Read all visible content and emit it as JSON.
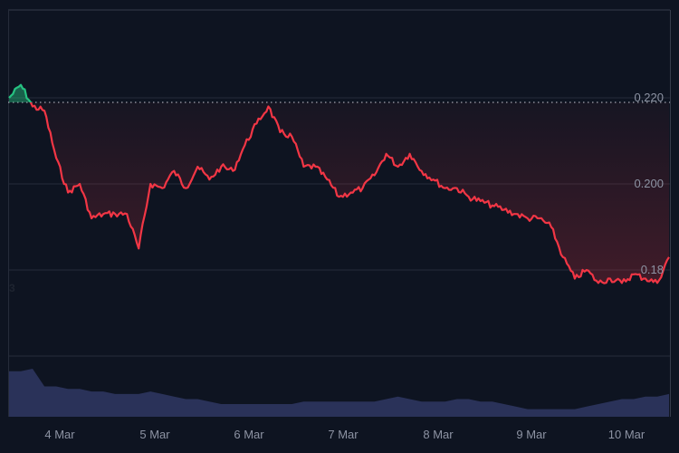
{
  "chart_data": {
    "type": "area",
    "title": "",
    "xlabel": "",
    "ylabel": "",
    "x_ticks": [
      "4 Mar",
      "5 Mar",
      "6 Mar",
      "7 Mar",
      "8 Mar",
      "9 Mar",
      "10 Mar"
    ],
    "y_ticks": [
      "0.220",
      "0.200",
      "0.18"
    ],
    "ylim": [
      0.165,
      0.24
    ],
    "grid": true,
    "baseline": 0.219,
    "baseline_style": "dotted",
    "colors": {
      "above_baseline": "#26c281",
      "below_baseline": "#f23645",
      "volume": "#2e3660",
      "background": "#0e1421",
      "grid": "#262c3a"
    },
    "series": [
      {
        "name": "price",
        "x": [
          "3 Mar 18:00",
          "3 Mar 20:00",
          "3 Mar 22:00",
          "4 Mar 00:00",
          "4 Mar 03:00",
          "4 Mar 06:00",
          "4 Mar 09:00",
          "4 Mar 12:00",
          "4 Mar 15:00",
          "4 Mar 18:00",
          "4 Mar 21:00",
          "5 Mar 00:00",
          "5 Mar 03:00",
          "5 Mar 06:00",
          "5 Mar 09:00",
          "5 Mar 12:00",
          "5 Mar 15:00",
          "5 Mar 18:00",
          "5 Mar 21:00",
          "6 Mar 00:00",
          "6 Mar 03:00",
          "6 Mar 06:00",
          "6 Mar 09:00",
          "6 Mar 12:00",
          "6 Mar 15:00",
          "6 Mar 18:00",
          "6 Mar 21:00",
          "7 Mar 00:00",
          "7 Mar 03:00",
          "7 Mar 06:00",
          "7 Mar 09:00",
          "7 Mar 12:00",
          "7 Mar 15:00",
          "7 Mar 18:00",
          "7 Mar 21:00",
          "8 Mar 00:00",
          "8 Mar 03:00",
          "8 Mar 06:00",
          "8 Mar 09:00",
          "8 Mar 12:00",
          "8 Mar 15:00",
          "8 Mar 18:00",
          "8 Mar 21:00",
          "9 Mar 00:00",
          "9 Mar 03:00",
          "9 Mar 06:00",
          "9 Mar 09:00",
          "9 Mar 12:00",
          "9 Mar 15:00",
          "9 Mar 18:00",
          "9 Mar 21:00",
          "10 Mar 00:00",
          "10 Mar 03:00",
          "10 Mar 06:00",
          "10 Mar 09:00",
          "10 Mar 12:00",
          "10 Mar 15:00"
        ],
        "values": [
          0.22,
          0.223,
          0.218,
          0.217,
          0.206,
          0.198,
          0.2,
          0.192,
          0.193,
          0.193,
          0.193,
          0.185,
          0.2,
          0.199,
          0.203,
          0.199,
          0.204,
          0.201,
          0.204,
          0.203,
          0.209,
          0.214,
          0.218,
          0.212,
          0.211,
          0.204,
          0.204,
          0.201,
          0.197,
          0.198,
          0.199,
          0.202,
          0.207,
          0.204,
          0.207,
          0.203,
          0.201,
          0.199,
          0.199,
          0.197,
          0.196,
          0.195,
          0.194,
          0.193,
          0.192,
          0.192,
          0.19,
          0.183,
          0.178,
          0.18,
          0.177,
          0.178,
          0.177,
          0.179,
          0.178,
          0.177,
          0.183
        ]
      },
      {
        "name": "volume",
        "values": [
          9,
          9,
          9.5,
          6,
          6,
          5.5,
          5.5,
          5,
          5,
          4.5,
          4.5,
          4.5,
          5,
          4.5,
          4,
          3.5,
          3.5,
          3,
          2.5,
          2.5,
          2.5,
          2.5,
          2.5,
          2.5,
          2.5,
          3,
          3,
          3,
          3,
          3,
          3,
          3,
          3.5,
          4,
          3.5,
          3,
          3,
          3,
          3.5,
          3.5,
          3,
          3,
          2.5,
          2,
          1.5,
          1.5,
          1.5,
          1.5,
          1.5,
          2,
          2.5,
          3,
          3.5,
          3.5,
          4,
          4,
          4.5
        ]
      }
    ]
  },
  "y_axis": {
    "labels": [
      "0.220",
      "0.200",
      "0.18"
    ],
    "side_marker": "3"
  },
  "x_axis": {
    "labels": [
      "4 Mar",
      "5 Mar",
      "6 Mar",
      "7 Mar",
      "8 Mar",
      "9 Mar",
      "10 Mar"
    ]
  }
}
